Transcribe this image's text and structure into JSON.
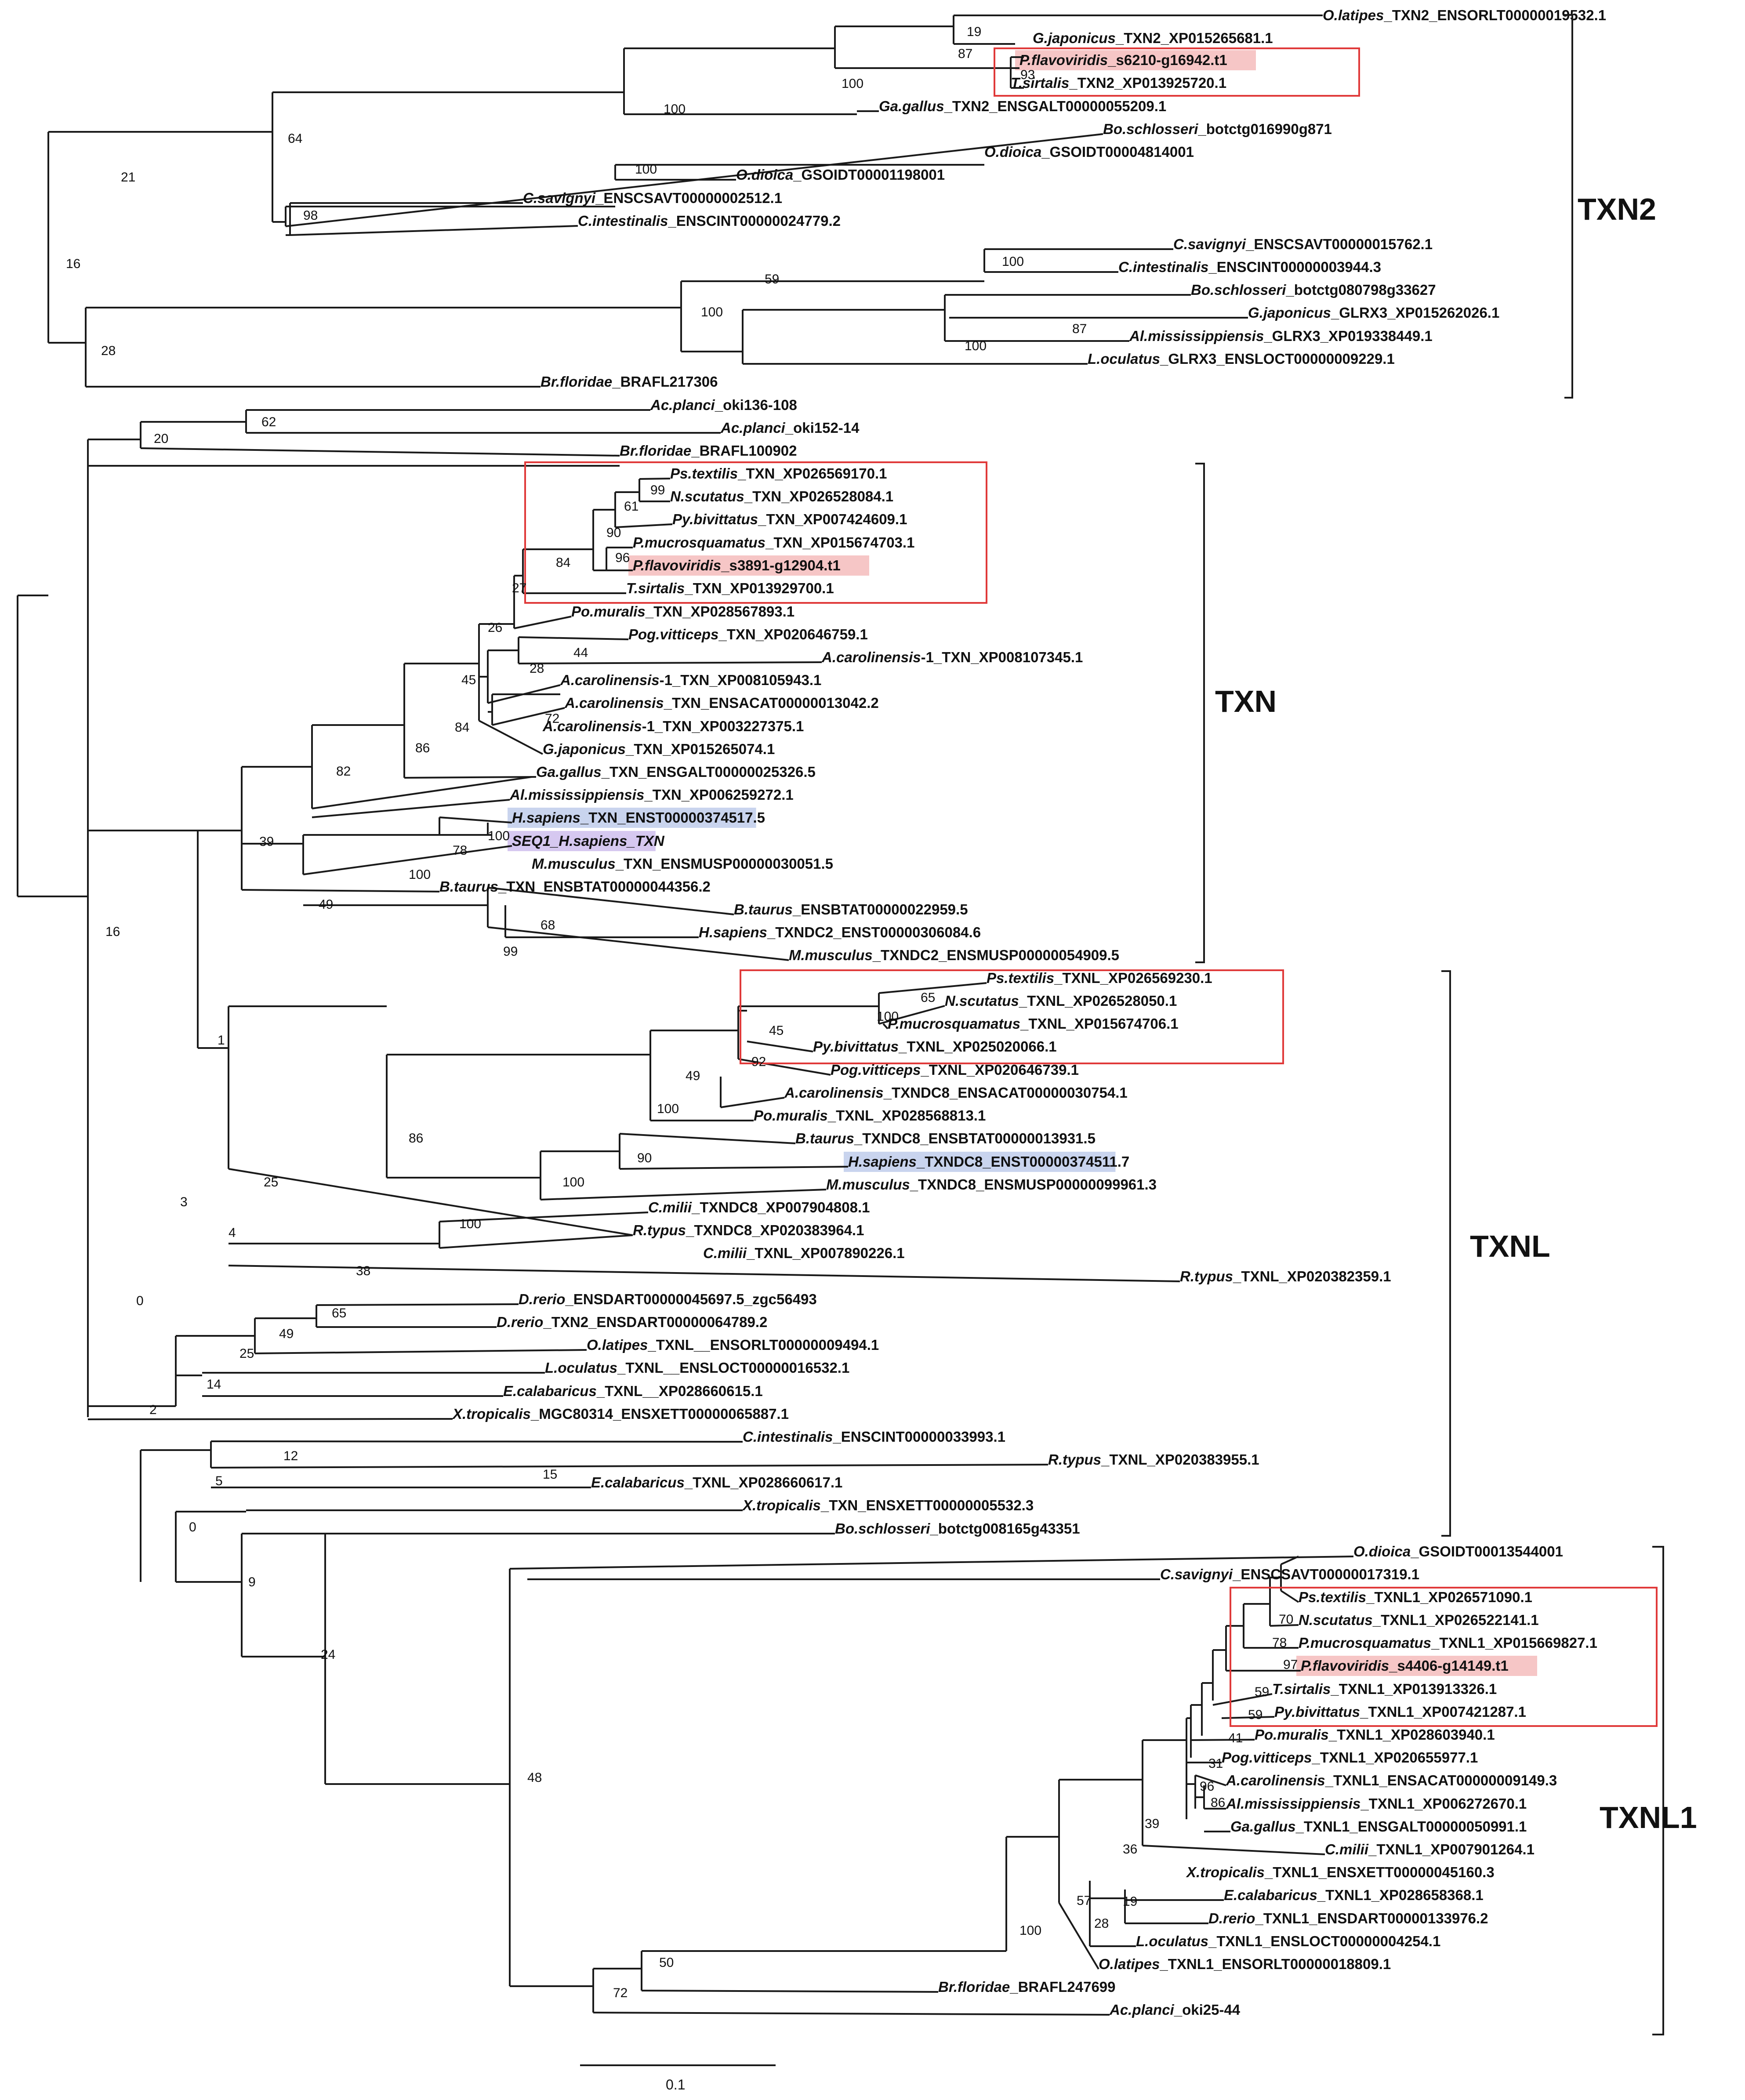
{
  "tree": {
    "clades": [
      "TXN2",
      "TXN",
      "TXNL",
      "TXNL1"
    ],
    "scale_label": "0.1",
    "colors": {
      "box": "#e03a3a",
      "pink": "#f6c6c6",
      "blue": "#c9d4ee",
      "purple": "#d6c8f0"
    },
    "tips": [
      {
        "sp": "O.latipes",
        "rest": "_TXN2_ENSORLT00000019532.1"
      },
      {
        "sp": "G.japonicus",
        "rest": "_TXN2_XP015265681.1"
      },
      {
        "sp": "P.flavoviridis",
        "rest": "_s6210-g16942.t1",
        "hl": "pink"
      },
      {
        "sp": "T.sirtalis",
        "rest": "_TXN2_XP013925720.1"
      },
      {
        "sp": "Ga.gallus",
        "rest": "_TXN2_ENSGALT00000055209.1"
      },
      {
        "sp": "Bo.schlosseri",
        "rest": "_botctg016990g871"
      },
      {
        "sp": "O.dioica",
        "rest": "_GSOIDT00004814001"
      },
      {
        "sp": "O.dioica",
        "rest": "_GSOIDT00001198001"
      },
      {
        "sp": "C.savignyi",
        "rest": "_ENSCSAVT00000002512.1"
      },
      {
        "sp": "C.intestinalis",
        "rest": "_ENSCINT00000024779.2"
      },
      {
        "sp": "C.savignyi",
        "rest": "_ENSCSAVT00000015762.1"
      },
      {
        "sp": "C.intestinalis",
        "rest": "_ENSCINT00000003944.3"
      },
      {
        "sp": "Bo.schlosseri",
        "rest": "_botctg080798g33627"
      },
      {
        "sp": "G.japonicus",
        "rest": "_GLRX3_XP015262026.1"
      },
      {
        "sp": "Al.mississippiensis",
        "rest": "_GLRX3_XP019338449.1"
      },
      {
        "sp": "L.oculatus",
        "rest": "_GLRX3_ENSLOCT00000009229.1"
      },
      {
        "sp": "Br.floridae",
        "rest": "_BRAFL217306"
      },
      {
        "sp": "Ac.planci",
        "rest": "_oki136-108"
      },
      {
        "sp": "Ac.planci",
        "rest": "_oki152-14"
      },
      {
        "sp": "Br.floridae",
        "rest": "_BRAFL100902"
      },
      {
        "sp": "Ps.textilis",
        "rest": "_TXN_XP026569170.1"
      },
      {
        "sp": "N.scutatus",
        "rest": "_TXN_XP026528084.1"
      },
      {
        "sp": "Py.bivittatus",
        "rest": "_TXN_XP007424609.1"
      },
      {
        "sp": "P.mucrosquamatus",
        "rest": "_TXN_XP015674703.1"
      },
      {
        "sp": "P.flavoviridis",
        "rest": "_s3891-g12904.t1",
        "hl": "pink"
      },
      {
        "sp": "T.sirtalis",
        "rest": "_TXN_XP013929700.1"
      },
      {
        "sp": "Po.muralis",
        "rest": "_TXN_XP028567893.1"
      },
      {
        "sp": "Pog.vitticeps",
        "rest": "_TXN_XP020646759.1"
      },
      {
        "sp": "A.carolinensis",
        "rest": "-1_TXN_XP008107345.1"
      },
      {
        "sp": "A.carolinensis",
        "rest": "-1_TXN_XP008105943.1"
      },
      {
        "sp": "A.carolinensis",
        "rest": "_TXN_ENSACAT00000013042.2"
      },
      {
        "sp": "A.carolinensis",
        "rest": "-1_TXN_XP003227375.1"
      },
      {
        "sp": "G.japonicus",
        "rest": "_TXN_XP015265074.1"
      },
      {
        "sp": "Ga.gallus",
        "rest": "_TXN_ENSGALT00000025326.5"
      },
      {
        "sp": "Al.mississippiensis",
        "rest": "_TXN_XP006259272.1"
      },
      {
        "sp": "H.sapiens",
        "rest": "_TXN_ENST00000374517.5",
        "hl": "blue"
      },
      {
        "sp": "SEQ1_H.sapiens_TXN",
        "rest": "",
        "hl": "purple"
      },
      {
        "sp": "M.musculus",
        "rest": "_TXN_ENSMUSP00000030051.5"
      },
      {
        "sp": "B.taurus",
        "rest": "_TXN_ENSBTAT00000044356.2"
      },
      {
        "sp": "B.taurus",
        "rest": "_ENSBTAT00000022959.5"
      },
      {
        "sp": "H.sapiens",
        "rest": "_TXNDC2_ENST00000306084.6"
      },
      {
        "sp": "M.musculus",
        "rest": "_TXNDC2_ENSMUSP00000054909.5"
      },
      {
        "sp": "Ps.textilis",
        "rest": "_TXNL_XP026569230.1"
      },
      {
        "sp": "N.scutatus",
        "rest": "_TXNL_XP026528050.1"
      },
      {
        "sp": "P.mucrosquamatus",
        "rest": "_TXNL_XP015674706.1"
      },
      {
        "sp": "Py.bivittatus",
        "rest": "_TXNL_XP025020066.1"
      },
      {
        "sp": "Pog.vitticeps",
        "rest": "_TXNL_XP020646739.1"
      },
      {
        "sp": "A.carolinensis",
        "rest": "_TXNDC8_ENSACAT00000030754.1"
      },
      {
        "sp": "Po.muralis",
        "rest": "_TXNL_XP028568813.1"
      },
      {
        "sp": "B.taurus",
        "rest": "_TXNDC8_ENSBTAT00000013931.5"
      },
      {
        "sp": "H.sapiens",
        "rest": "_TXNDC8_ENST00000374511.7",
        "hl": "blue"
      },
      {
        "sp": "M.musculus",
        "rest": "_TXNDC8_ENSMUSP00000099961.3"
      },
      {
        "sp": "C.milii",
        "rest": "_TXNDC8_XP007904808.1"
      },
      {
        "sp": "R.typus",
        "rest": "_TXNDC8_XP020383964.1"
      },
      {
        "sp": "C.milii",
        "rest": "_TXNL_XP007890226.1"
      },
      {
        "sp": "R.typus",
        "rest": "_TXNL_XP020382359.1"
      },
      {
        "sp": "D.rerio",
        "rest": "_ENSDART00000045697.5_zgc56493"
      },
      {
        "sp": "D.rerio",
        "rest": "_TXN2_ENSDART00000064789.2"
      },
      {
        "sp": "O.latipes",
        "rest": "_TXNL__ENSORLT00000009494.1"
      },
      {
        "sp": "L.oculatus",
        "rest": "_TXNL__ENSLOCT00000016532.1"
      },
      {
        "sp": "E.calabaricus",
        "rest": "_TXNL__XP028660615.1"
      },
      {
        "sp": "X.tropicalis",
        "rest": "_MGC80314_ENSXETT00000065887.1"
      },
      {
        "sp": "C.intestinalis",
        "rest": "_ENSCINT00000033993.1"
      },
      {
        "sp": "R.typus",
        "rest": "_TXNL_XP020383955.1"
      },
      {
        "sp": "E.calabaricus",
        "rest": "_TXNL_XP028660617.1"
      },
      {
        "sp": "X.tropicalis",
        "rest": "_TXN_ENSXETT00000005532.3"
      },
      {
        "sp": "Bo.schlosseri",
        "rest": "_botctg008165g43351"
      },
      {
        "sp": "O.dioica",
        "rest": "_GSOIDT00013544001"
      },
      {
        "sp": "C.savignyi",
        "rest": "_ENSCSAVT00000017319.1"
      },
      {
        "sp": "Ps.textilis",
        "rest": "_TXNL1_XP026571090.1"
      },
      {
        "sp": "N.scutatus",
        "rest": "_TXNL1_XP026522141.1"
      },
      {
        "sp": "P.mucrosquamatus",
        "rest": "_TXNL1_XP015669827.1"
      },
      {
        "sp": "P.flavoviridis",
        "rest": "_s4406-g14149.t1",
        "hl": "pink"
      },
      {
        "sp": "T.sirtalis",
        "rest": "_TXNL1_XP013913326.1"
      },
      {
        "sp": "Py.bivittatus",
        "rest": "_TXNL1_XP007421287.1"
      },
      {
        "sp": "Po.muralis",
        "rest": "_TXNL1_XP028603940.1"
      },
      {
        "sp": "Pog.vitticeps",
        "rest": "_TXNL1_XP020655977.1"
      },
      {
        "sp": "A.carolinensis",
        "rest": "_TXNL1_ENSACAT00000009149.3"
      },
      {
        "sp": "Al.mississippiensis",
        "rest": "_TXNL1_XP006272670.1"
      },
      {
        "sp": "Ga.gallus",
        "rest": "_TXNL1_ENSGALT00000050991.1"
      },
      {
        "sp": "C.milii",
        "rest": "_TXNL1_XP007901264.1"
      },
      {
        "sp": "X.tropicalis",
        "rest": "_TXNL1_ENSXETT00000045160.3"
      },
      {
        "sp": "E.calabaricus",
        "rest": "_TXNL1_XP028658368.1"
      },
      {
        "sp": "D.rerio",
        "rest": "_TXNL1_ENSDART00000133976.2"
      },
      {
        "sp": "L.oculatus",
        "rest": "_TXNL1_ENSLOCT00000004254.1"
      },
      {
        "sp": "O.latipes",
        "rest": "_TXNL1_ENSORLT00000018809.1"
      },
      {
        "sp": "Br.floridae",
        "rest": "_BRAFL247699"
      },
      {
        "sp": "Ac.planci",
        "rest": "_oki25-44"
      }
    ],
    "bootstraps": [
      "19",
      "87",
      "93",
      "100",
      "100",
      "64",
      "100",
      "21",
      "98",
      "100",
      "59",
      "100",
      "87",
      "100",
      "28",
      "16",
      "62",
      "20",
      "99",
      "61",
      "90",
      "96",
      "84",
      "27",
      "26",
      "44",
      "28",
      "45",
      "72",
      "84",
      "86",
      "82",
      "100",
      "78",
      "100",
      "39",
      "68",
      "99",
      "49",
      "16",
      "65",
      "100",
      "45",
      "92",
      "49",
      "100",
      "86",
      "90",
      "100",
      "25",
      "100",
      "38",
      "4",
      "3",
      "1",
      "65",
      "49",
      "25",
      "14",
      "0",
      "12",
      "5",
      "15",
      "70",
      "78",
      "97",
      "59",
      "59",
      "41",
      "31",
      "96",
      "86",
      "39",
      "36",
      "19",
      "28",
      "57",
      "100",
      "50",
      "72",
      "48",
      "24",
      "9",
      "0",
      "2"
    ]
  }
}
